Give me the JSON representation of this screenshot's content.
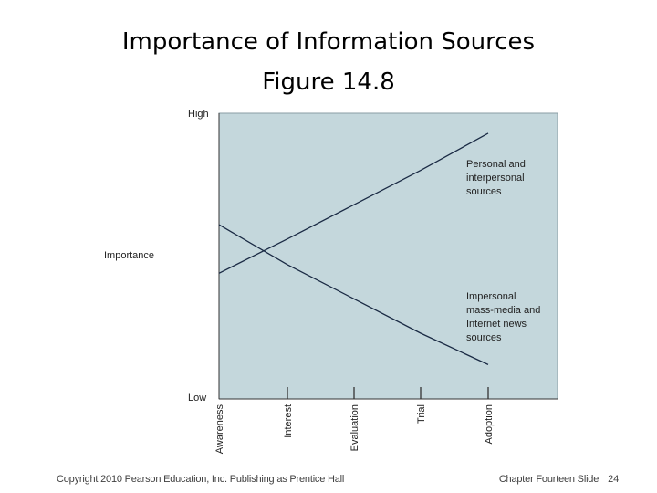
{
  "slide": {
    "title_line1": "Importance of Information Sources",
    "title_line2": "Figure 14.8",
    "footer_left": "Copyright 2010 Pearson Education, Inc. Publishing as Prentice Hall",
    "footer_right": "Chapter Fourteen Slide",
    "page_number": "24"
  },
  "chart_data": {
    "type": "line",
    "title": "",
    "ylabel": "Importance",
    "xlabel": "",
    "y_high_label": "High",
    "y_low_label": "Low",
    "categories": [
      "Awareness",
      "Interest",
      "Evaluation",
      "Trial",
      "Adoption"
    ],
    "ylim": [
      0,
      10
    ],
    "grid": false,
    "plot_background": "#c4d7dc",
    "line_color": "#1a2a44",
    "series": [
      {
        "name_lines": [
          "Personal and",
          "interpersonal",
          "sources"
        ],
        "values": [
          4.4,
          5.6,
          6.8,
          8.0,
          9.3
        ]
      },
      {
        "name_lines": [
          "Impersonal",
          "mass-media and",
          "Internet news",
          "sources"
        ],
        "values": [
          6.1,
          4.7,
          3.5,
          2.3,
          1.2
        ]
      }
    ]
  }
}
